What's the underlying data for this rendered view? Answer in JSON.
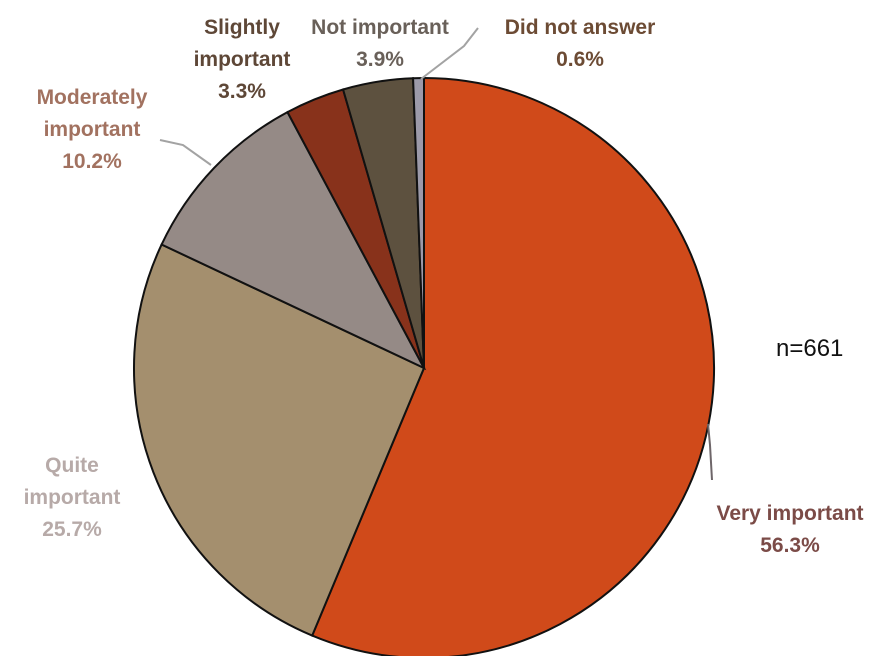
{
  "chart_data": {
    "type": "pie",
    "title": "",
    "note": "n=661",
    "slices": [
      {
        "label_lines": [
          "Very important"
        ],
        "value": 56.3,
        "value_label": "56.3%",
        "color": "#d04a1a",
        "label_color": "#7b4b47"
      },
      {
        "label_lines": [
          "Quite",
          "important"
        ],
        "value": 25.7,
        "value_label": "25.7%",
        "color": "#a48f6e",
        "label_color": "#b7aaa8"
      },
      {
        "label_lines": [
          "Moderately",
          "important"
        ],
        "value": 10.2,
        "value_label": "10.2%",
        "color": "#958a86",
        "label_color": "#a27260"
      },
      {
        "label_lines": [
          "Slightly",
          "important"
        ],
        "value": 3.3,
        "value_label": "3.3%",
        "color": "#88321b",
        "label_color": "#5e4737"
      },
      {
        "label_lines": [
          "Not important"
        ],
        "value": 3.9,
        "value_label": "3.9%",
        "color": "#5d513f",
        "label_color": "#696059"
      },
      {
        "label_lines": [
          "Did not answer"
        ],
        "value": 0.6,
        "value_label": "0.6%",
        "color": "#9c9aa9",
        "label_color": "#6c4b34"
      }
    ]
  }
}
